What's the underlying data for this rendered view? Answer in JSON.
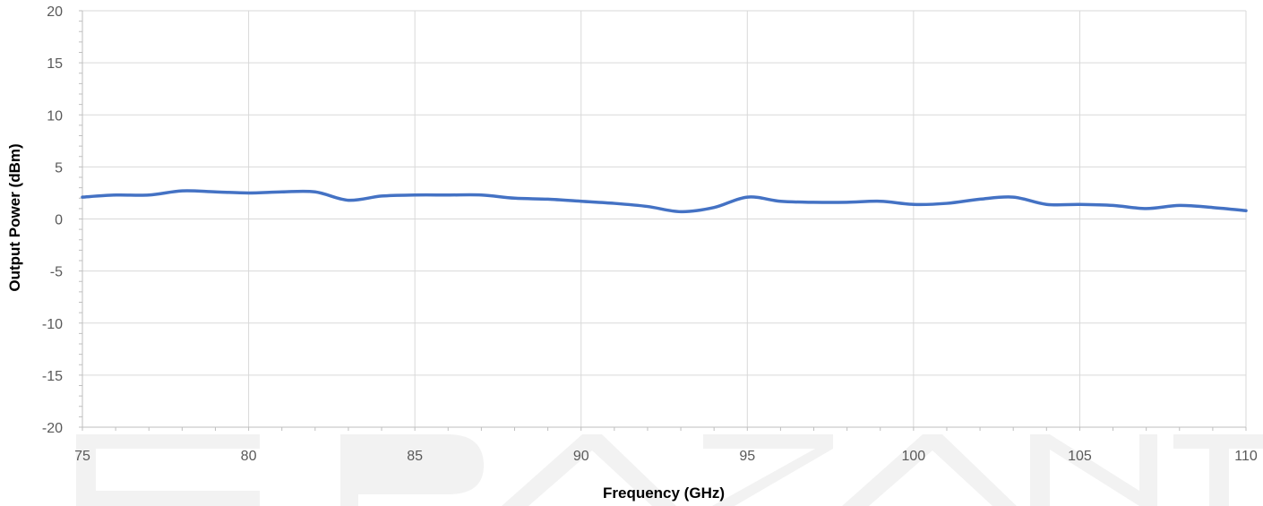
{
  "chart_data": {
    "type": "line",
    "title": "",
    "xlabel": "Frequency (GHz)",
    "ylabel": "Output Power (dBm)",
    "xlim": [
      75,
      110
    ],
    "ylim": [
      -20,
      20
    ],
    "xticks": [
      75,
      80,
      85,
      90,
      95,
      100,
      105,
      110
    ],
    "yticks": [
      -20,
      -15,
      -10,
      -5,
      0,
      5,
      10,
      15,
      20
    ],
    "grid": true,
    "legend": "none",
    "series": [
      {
        "color": "#4472c4",
        "x": [
          75,
          76,
          77,
          78,
          79,
          80,
          81,
          82,
          83,
          84,
          85,
          86,
          87,
          88,
          89,
          90,
          91,
          92,
          93,
          94,
          95,
          96,
          97,
          98,
          99,
          100,
          101,
          102,
          103,
          104,
          105,
          106,
          107,
          108,
          109,
          110
        ],
        "y": [
          2.1,
          2.3,
          2.3,
          2.7,
          2.6,
          2.5,
          2.6,
          2.6,
          1.8,
          2.2,
          2.3,
          2.3,
          2.3,
          2.0,
          1.9,
          1.7,
          1.5,
          1.2,
          0.7,
          1.1,
          2.1,
          1.7,
          1.6,
          1.6,
          1.7,
          1.4,
          1.5,
          1.9,
          2.1,
          1.4,
          1.4,
          1.3,
          1.0,
          1.3,
          1.1,
          0.8
        ]
      }
    ]
  }
}
